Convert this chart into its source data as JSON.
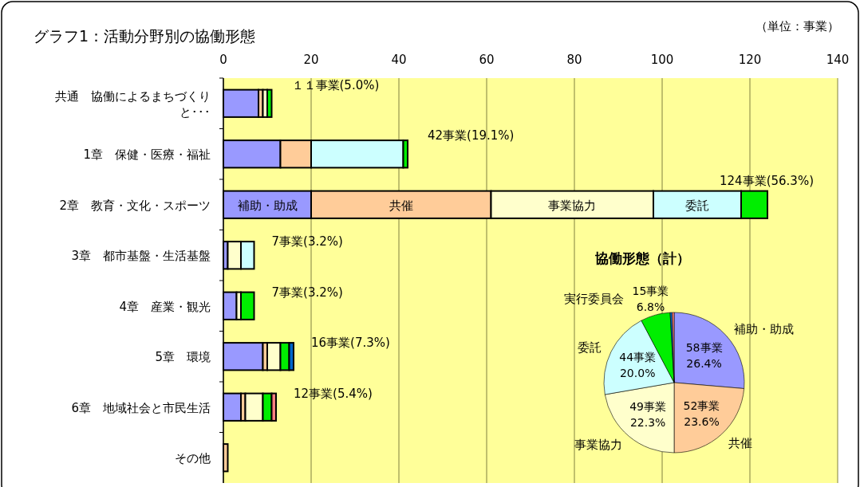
{
  "chart_data": [
    {
      "type": "bar",
      "title": "グラフ1：活動分野別の協働形態",
      "orientation": "horizontal",
      "stacked": true,
      "grid": "x",
      "annotations": [
        "（単位：事業）"
      ],
      "categories": [
        "共通　協働によるまちづくりと･･･",
        "1章　保健・医療・福祉",
        "2章　教育・文化・スポーツ",
        "3章　都市基盤・生活基盤",
        "4章　産業・観光",
        "5章　環境",
        "6章　地域社会と市民生活",
        "その他"
      ],
      "xlim": [
        0,
        140
      ],
      "xticks": [
        0,
        20,
        40,
        60,
        80,
        100,
        120,
        140
      ],
      "series": [
        {
          "name": "補助・助成",
          "color": "#9999ff",
          "values": [
            8,
            13,
            20,
            1,
            3,
            9,
            4,
            0
          ]
        },
        {
          "name": "共催",
          "color": "#ffcc99",
          "values": [
            1,
            7,
            41,
            0,
            0,
            1,
            1,
            1
          ]
        },
        {
          "name": "事業協力",
          "color": "#ffffcc",
          "values": [
            1,
            0,
            37,
            3,
            1,
            3,
            4,
            0
          ]
        },
        {
          "name": "委託",
          "color": "#ccffff",
          "values": [
            0,
            21,
            20,
            3,
            0,
            0,
            0,
            0
          ]
        },
        {
          "color": "#00ee00",
          "values": [
            1,
            1,
            6,
            0,
            3,
            2,
            2,
            0
          ]
        },
        {
          "color": "#0066cc",
          "values": [
            0,
            0,
            0,
            0,
            0,
            1,
            0,
            0
          ]
        },
        {
          "color": "#ff8080",
          "values": [
            0,
            0,
            0,
            0,
            0,
            0,
            1,
            0
          ]
        }
      ],
      "totals": [
        "１１事業(5.0%)",
        "42事業(19.1%)",
        "124事業(56.3%)",
        "7事業(3.2%)",
        "7事業(3.2%)",
        "16事業(7.3%)",
        "12事業(5.4%)",
        null
      ]
    },
    {
      "type": "pie",
      "title": "協働形態（計）",
      "categories": [
        "補助・助成",
        "共催",
        "事業協力",
        "委託",
        "実行委員会",
        null,
        null
      ],
      "values": [
        58,
        52,
        49,
        44,
        15,
        1,
        1
      ],
      "colors": [
        "#9999ff",
        "#ffcc99",
        "#ffffcc",
        "#ccffff",
        "#00ee00",
        "#0066cc",
        "#ff8080"
      ],
      "value_labels": [
        "58事業\n26.4%",
        "52事業\n23.6%",
        "49事業\n22.3%",
        "44事業\n20.0%",
        "15事業\n6.8%",
        null,
        null
      ]
    }
  ]
}
